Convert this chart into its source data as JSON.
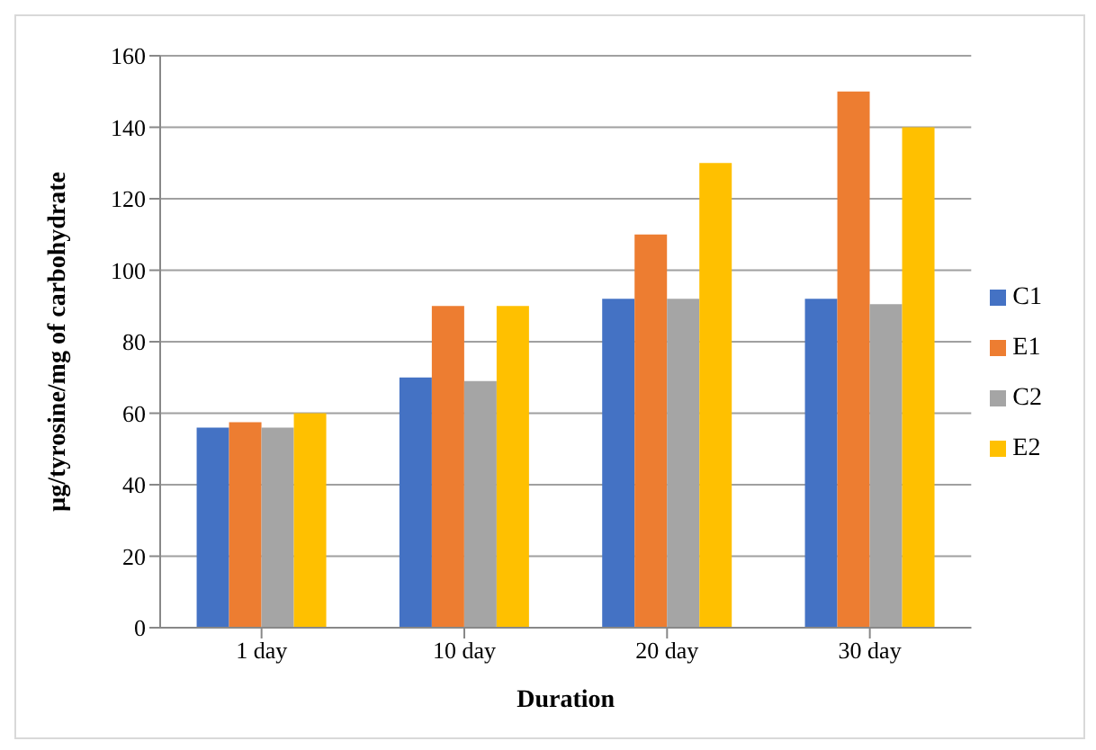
{
  "chart_data": {
    "type": "bar",
    "xlabel": "Duration",
    "ylabel": "µg/tyrosine/mg of carbohydrate",
    "categories": [
      "1 day",
      "10 day",
      "20 day",
      "30 day"
    ],
    "series": [
      {
        "name": "C1",
        "color": "#4472c4",
        "values": [
          56,
          70,
          92,
          92
        ]
      },
      {
        "name": "E1",
        "color": "#ed7d31",
        "values": [
          57.5,
          90,
          110,
          150
        ]
      },
      {
        "name": "C2",
        "color": "#a5a5a5",
        "values": [
          56,
          69,
          92,
          90.5
        ]
      },
      {
        "name": "E2",
        "color": "#ffc000",
        "values": [
          60,
          90,
          130,
          140
        ]
      }
    ],
    "ylim": [
      0,
      160
    ],
    "yticks": [
      0,
      20,
      40,
      60,
      80,
      100,
      120,
      140,
      160
    ],
    "grid": "y",
    "legend": "right"
  }
}
